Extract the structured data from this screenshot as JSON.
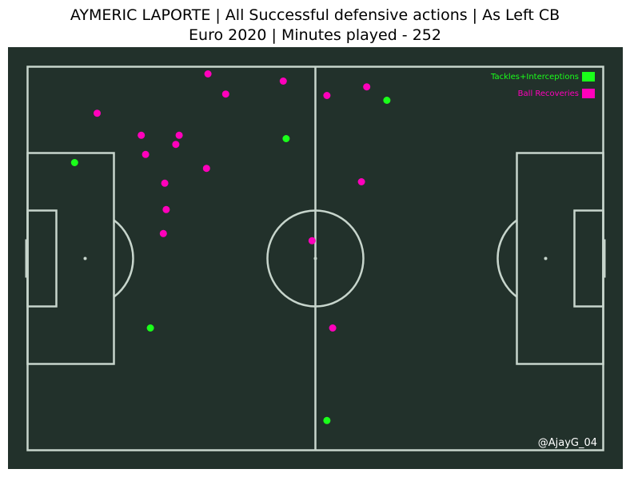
{
  "title_line1": "AYMERIC LAPORTE | All Successful defensive actions | As Left CB",
  "title_line2": "Euro 2020 | Minutes played - 252",
  "credit": "@AjayG_04",
  "colors": {
    "pitch": "#22312b",
    "lines": "#c7d5cc",
    "tackles": "#1aff1a",
    "recoveries": "#ff00bb"
  },
  "chart_data": {
    "type": "scatter",
    "title": "AYMERIC LAPORTE | All Successful defensive actions | As Left CB",
    "subtitle": "Euro 2020 | Minutes played - 252",
    "xlim": [
      0,
      120
    ],
    "ylim": [
      0,
      80
    ],
    "grid": false,
    "legend_position": "top-right",
    "series": [
      {
        "name": "Tackles+Interceptions",
        "color": "#1aff1a",
        "points": [
          {
            "x": 9.8,
            "y": 20.0
          },
          {
            "x": 25.6,
            "y": 54.5
          },
          {
            "x": 53.9,
            "y": 15.0
          },
          {
            "x": 74.9,
            "y": 7.0
          },
          {
            "x": 62.4,
            "y": 73.8
          }
        ]
      },
      {
        "name": "Ball Recoveries",
        "color": "#ff00bb",
        "points": [
          {
            "x": 37.6,
            "y": 1.5
          },
          {
            "x": 41.3,
            "y": 5.7
          },
          {
            "x": 53.3,
            "y": 3.0
          },
          {
            "x": 62.4,
            "y": 6.0
          },
          {
            "x": 70.7,
            "y": 4.2
          },
          {
            "x": 14.5,
            "y": 9.7
          },
          {
            "x": 23.7,
            "y": 14.3
          },
          {
            "x": 31.6,
            "y": 14.3
          },
          {
            "x": 30.9,
            "y": 16.2
          },
          {
            "x": 24.6,
            "y": 18.3
          },
          {
            "x": 37.3,
            "y": 21.2
          },
          {
            "x": 28.6,
            "y": 24.3
          },
          {
            "x": 28.9,
            "y": 29.8
          },
          {
            "x": 28.3,
            "y": 34.8
          },
          {
            "x": 69.6,
            "y": 24.0
          },
          {
            "x": 59.3,
            "y": 36.3
          },
          {
            "x": 63.6,
            "y": 54.5
          }
        ]
      }
    ]
  }
}
